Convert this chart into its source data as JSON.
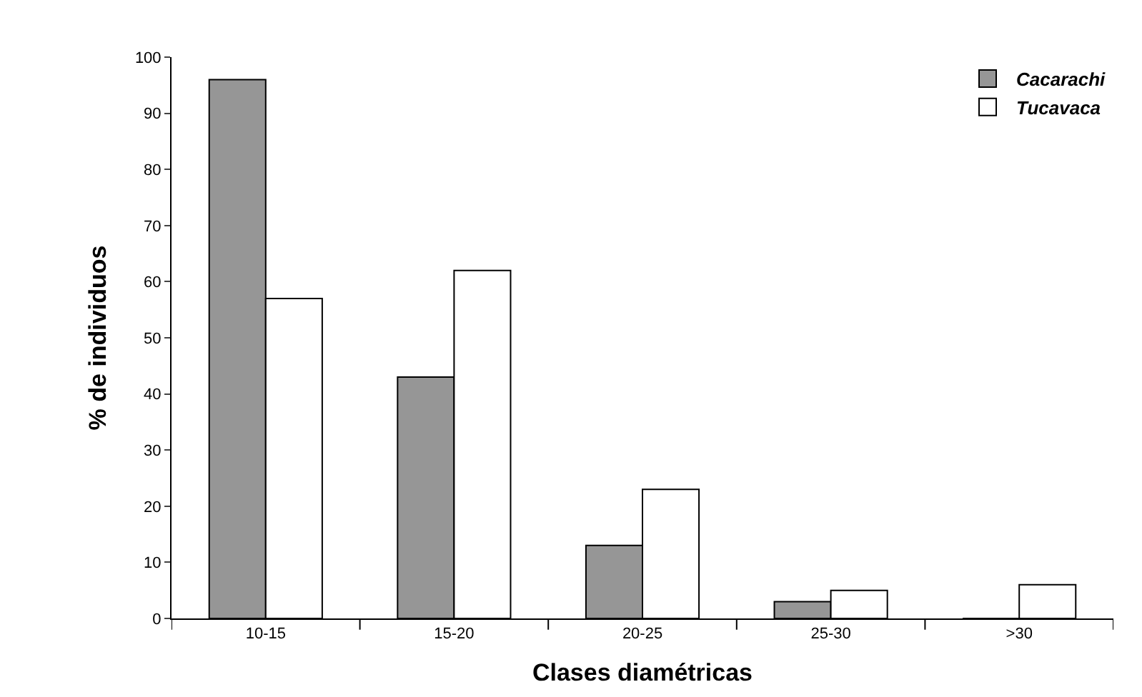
{
  "chart_data": {
    "type": "bar",
    "xlabel": "Clases diamétricas",
    "ylabel": "% de individuos",
    "categories": [
      "10-15",
      "15-20",
      "20-25",
      "25-30",
      ">30"
    ],
    "series": [
      {
        "name": "Cacarachi",
        "color": "#969696",
        "values": [
          96,
          43,
          13,
          3,
          0
        ]
      },
      {
        "name": "Tucavaca",
        "color": "#ffffff",
        "values": [
          57,
          62,
          23,
          5,
          6
        ]
      }
    ],
    "ylim": [
      0,
      100
    ],
    "yticks": [
      0,
      10,
      20,
      30,
      40,
      50,
      60,
      70,
      80,
      90,
      100
    ],
    "grid": false,
    "legend": "top right"
  }
}
